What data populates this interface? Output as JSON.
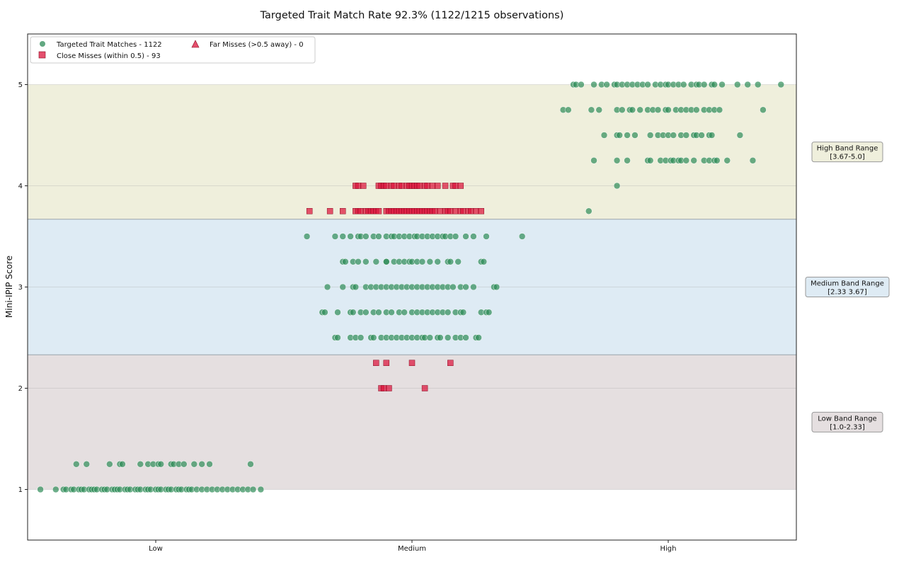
{
  "chart_data": {
    "type": "scatter",
    "title": "Targeted Trait Match Rate 92.3% (1122/1215 observations)",
    "xlabel": "",
    "ylabel": "Mini-IPIP Score",
    "categories": [
      "Low",
      "Medium",
      "High"
    ],
    "ylim": [
      0.5,
      5.5
    ],
    "yticks": [
      1,
      2,
      3,
      4,
      5
    ],
    "grid": true,
    "legend_placement": "top-left",
    "colors": {
      "match": "#2e8b57",
      "close_miss": "#dc143c",
      "far_miss": "#dc143c",
      "high_band": "#efefdc",
      "medium_band": "#deebf4",
      "low_band": "#e5dfe0"
    },
    "bands": [
      {
        "name": "High",
        "range": [
          3.67,
          5.0
        ],
        "label_line1": "High Band Range",
        "label_line2": "[3.67-5.0]"
      },
      {
        "name": "Medium",
        "range": [
          2.33,
          3.67
        ],
        "label_line1": "Medium Band Range",
        "label_line2": "[2.33 3.67]"
      },
      {
        "name": "Low",
        "range": [
          1.0,
          2.33
        ],
        "label_line1": "Low Band Range",
        "label_line2": "[1.0-2.33]"
      }
    ],
    "legend": [
      {
        "marker": "circle",
        "label": "Targeted Trait Matches - 1122"
      },
      {
        "marker": "triangle",
        "label": "Far Misses (>0.5 away) - 0"
      },
      {
        "marker": "square",
        "label": "Close Misses (within 0.5) - 93"
      }
    ],
    "series": [
      {
        "name": "Targeted Trait Matches - 1122",
        "marker": "circle",
        "points": [
          {
            "x": "Low",
            "y": 1.0,
            "jitter": [
              -0.45,
              -0.39,
              -0.36,
              -0.35,
              -0.33,
              -0.32,
              -0.3,
              -0.29,
              -0.28,
              -0.26,
              -0.25,
              -0.24,
              -0.23,
              -0.21,
              -0.2,
              -0.19,
              -0.17,
              -0.16,
              -0.15,
              -0.14,
              -0.12,
              -0.11,
              -0.1,
              -0.08,
              -0.07,
              -0.06,
              -0.04,
              -0.03,
              -0.02,
              0.0,
              0.01,
              0.02,
              0.04,
              0.05,
              0.06,
              0.08,
              0.09,
              0.1,
              0.12,
              0.13,
              0.14,
              0.16,
              0.18,
              0.2,
              0.22,
              0.24,
              0.26,
              0.28,
              0.3,
              0.32,
              0.34,
              0.36,
              0.38,
              0.41
            ]
          },
          {
            "x": "Low",
            "y": 1.25,
            "jitter": [
              -0.31,
              -0.27,
              -0.18,
              -0.14,
              -0.13,
              -0.06,
              -0.03,
              -0.01,
              0.01,
              0.02,
              0.06,
              0.07,
              0.09,
              0.11,
              0.15,
              0.18,
              0.21,
              0.37
            ]
          },
          {
            "x": "Medium",
            "y": 2.5,
            "jitter": [
              -0.3,
              -0.29,
              -0.24,
              -0.22,
              -0.2,
              -0.16,
              -0.15,
              -0.12,
              -0.1,
              -0.08,
              -0.06,
              -0.04,
              -0.02,
              0.0,
              0.02,
              0.04,
              0.05,
              0.07,
              0.1,
              0.11,
              0.14,
              0.17,
              0.19,
              0.21,
              0.25,
              0.26
            ]
          },
          {
            "x": "Medium",
            "y": 2.75,
            "jitter": [
              -0.35,
              -0.34,
              -0.29,
              -0.24,
              -0.23,
              -0.2,
              -0.18,
              -0.15,
              -0.13,
              -0.1,
              -0.08,
              -0.05,
              -0.03,
              0.0,
              0.02,
              0.04,
              0.06,
              0.08,
              0.1,
              0.12,
              0.14,
              0.17,
              0.19,
              0.2,
              0.27,
              0.29,
              0.3
            ]
          },
          {
            "x": "Medium",
            "y": 3.0,
            "jitter": [
              -0.33,
              -0.27,
              -0.23,
              -0.22,
              -0.18,
              -0.16,
              -0.14,
              -0.12,
              -0.1,
              -0.08,
              -0.06,
              -0.04,
              -0.02,
              0.0,
              0.02,
              0.04,
              0.06,
              0.08,
              0.1,
              0.12,
              0.14,
              0.16,
              0.19,
              0.21,
              0.24,
              0.32,
              0.33
            ]
          },
          {
            "x": "Medium",
            "y": 3.25,
            "jitter": [
              -0.27,
              -0.26,
              -0.23,
              -0.21,
              -0.18,
              -0.14,
              -0.1,
              -0.1,
              -0.07,
              -0.05,
              -0.03,
              -0.01,
              0.0,
              0.02,
              0.04,
              0.07,
              0.1,
              0.14,
              0.15,
              0.18,
              0.27,
              0.28
            ]
          },
          {
            "x": "Medium",
            "y": 3.5,
            "jitter": [
              -0.41,
              -0.3,
              -0.27,
              -0.24,
              -0.21,
              -0.2,
              -0.18,
              -0.15,
              -0.13,
              -0.1,
              -0.08,
              -0.07,
              -0.05,
              -0.03,
              -0.01,
              0.01,
              0.02,
              0.04,
              0.06,
              0.08,
              0.1,
              0.12,
              0.13,
              0.15,
              0.17,
              0.21,
              0.24,
              0.29,
              0.43
            ]
          },
          {
            "x": "High",
            "y": 3.75,
            "jitter": [
              -0.31
            ]
          },
          {
            "x": "High",
            "y": 4.0,
            "jitter": [
              -0.2
            ]
          },
          {
            "x": "High",
            "y": 4.25,
            "jitter": [
              -0.29,
              -0.2,
              -0.16,
              -0.08,
              -0.07,
              -0.03,
              -0.01,
              0.01,
              0.02,
              0.04,
              0.05,
              0.07,
              0.1,
              0.14,
              0.16,
              0.18,
              0.19,
              0.23,
              0.33
            ]
          },
          {
            "x": "High",
            "y": 4.5,
            "jitter": [
              -0.25,
              -0.2,
              -0.19,
              -0.16,
              -0.13,
              -0.07,
              -0.04,
              -0.02,
              0.0,
              0.02,
              0.05,
              0.07,
              0.1,
              0.11,
              0.13,
              0.16,
              0.17,
              0.28
            ]
          },
          {
            "x": "High",
            "y": 4.75,
            "jitter": [
              -0.41,
              -0.39,
              -0.3,
              -0.27,
              -0.2,
              -0.18,
              -0.15,
              -0.14,
              -0.11,
              -0.08,
              -0.06,
              -0.04,
              -0.01,
              0.0,
              0.03,
              0.05,
              0.07,
              0.09,
              0.11,
              0.14,
              0.16,
              0.18,
              0.2,
              0.37
            ]
          },
          {
            "x": "High",
            "y": 5.0,
            "jitter": [
              -0.37,
              -0.36,
              -0.34,
              -0.29,
              -0.26,
              -0.24,
              -0.21,
              -0.2,
              -0.18,
              -0.16,
              -0.14,
              -0.12,
              -0.1,
              -0.08,
              -0.05,
              -0.03,
              -0.01,
              0.0,
              0.02,
              0.04,
              0.06,
              0.09,
              0.11,
              0.12,
              0.14,
              0.17,
              0.18,
              0.21,
              0.27,
              0.31,
              0.35,
              0.44
            ]
          }
        ]
      },
      {
        "name": "Close Misses (within 0.5) - 93",
        "marker": "square",
        "points": [
          {
            "x": "Medium",
            "y": 2.0,
            "jitter": [
              -0.12,
              -0.11,
              -0.09,
              0.05
            ]
          },
          {
            "x": "Medium",
            "y": 2.25,
            "jitter": [
              -0.14,
              -0.1,
              0.0,
              0.15
            ]
          },
          {
            "x": "Medium",
            "y": 3.75,
            "jitter": [
              -0.4,
              -0.32,
              -0.27,
              -0.22,
              -0.21,
              -0.2,
              -0.18,
              -0.17,
              -0.16,
              -0.15,
              -0.14,
              -0.13,
              -0.1,
              -0.09,
              -0.08,
              -0.07,
              -0.06,
              -0.05,
              -0.04,
              -0.03,
              -0.02,
              -0.01,
              0.0,
              0.01,
              0.02,
              0.03,
              0.04,
              0.05,
              0.06,
              0.07,
              0.08,
              0.09,
              0.11,
              0.13,
              0.14,
              0.15,
              0.17,
              0.19,
              0.2,
              0.22,
              0.23,
              0.25,
              0.27
            ]
          },
          {
            "x": "Medium",
            "y": 4.0,
            "jitter": [
              -0.22,
              -0.21,
              -0.19,
              -0.13,
              -0.12,
              -0.11,
              -0.1,
              -0.08,
              -0.07,
              -0.05,
              -0.04,
              -0.02,
              -0.01,
              0.0,
              0.01,
              0.02,
              0.03,
              0.05,
              0.06,
              0.08,
              0.1,
              0.13,
              0.16,
              0.17,
              0.19
            ]
          }
        ]
      },
      {
        "name": "Far Misses (>0.5 away) - 0",
        "marker": "triangle",
        "points": []
      }
    ]
  }
}
